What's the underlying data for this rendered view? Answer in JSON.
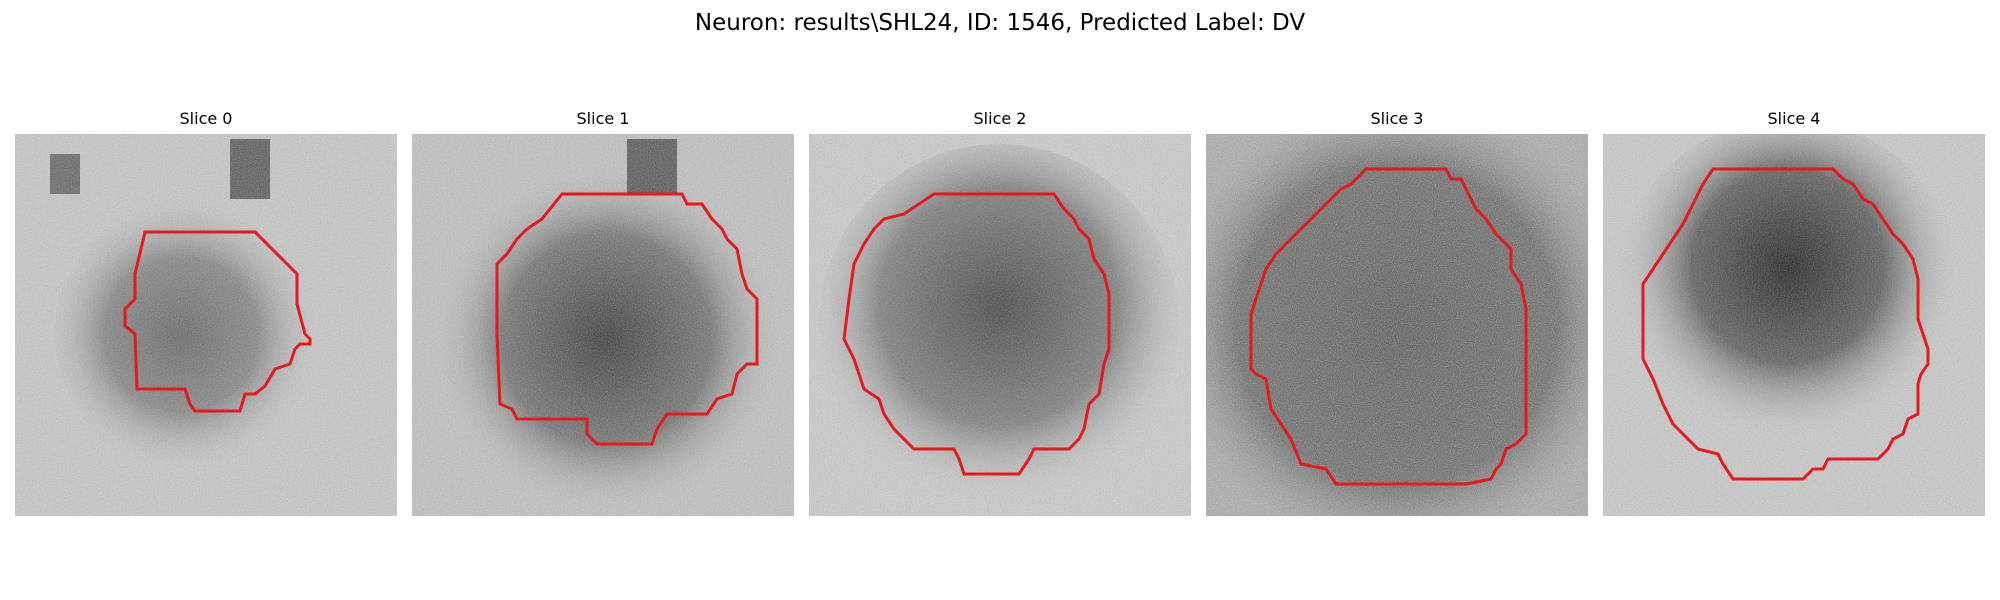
{
  "figure": {
    "title": "Neuron: results\\SHL24, ID: 1546, Predicted Label: DV",
    "contour_color": "#e41a1c",
    "colormap": "grayscale"
  },
  "slices": [
    {
      "title": "Slice 0"
    },
    {
      "title": "Slice 1"
    },
    {
      "title": "Slice 2"
    },
    {
      "title": "Slice 3"
    },
    {
      "title": "Slice 4"
    }
  ]
}
